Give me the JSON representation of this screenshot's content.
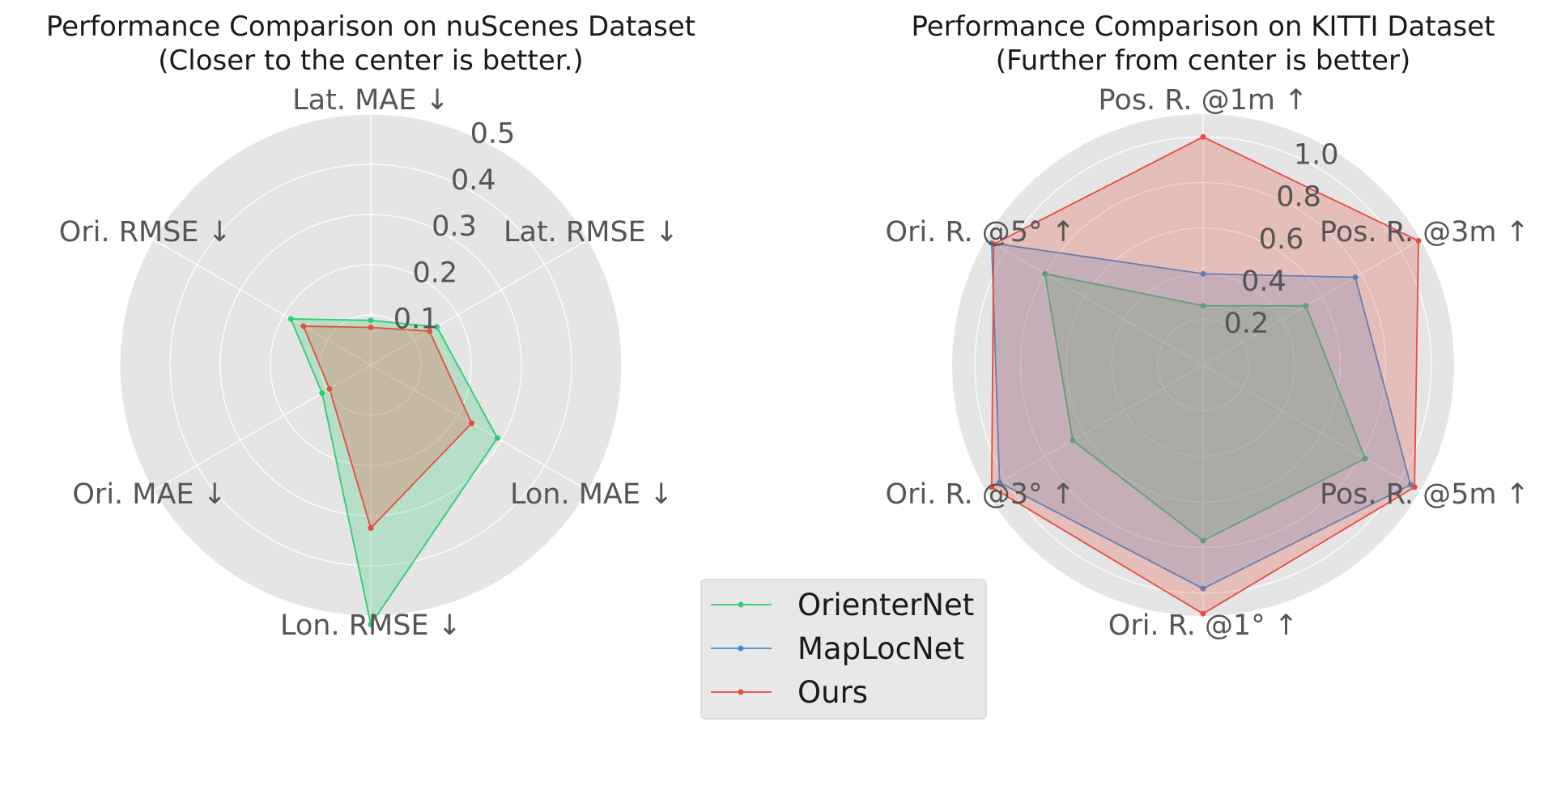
{
  "chart_data": [
    {
      "type": "radar",
      "title": "Performance Comparison on nuScenes Dataset",
      "subtitle": "(Closer to the center is better.)",
      "axes": [
        "Lat. MAE ↓",
        "Lat. RMSE ↓",
        "Lon. MAE ↓",
        "Lon. RMSE ↓",
        "Ori. MAE ↓",
        "Ori. RMSE ↓"
      ],
      "rlim": [
        0,
        0.5
      ],
      "ticks": [
        "0.1",
        "0.2",
        "0.3",
        "0.4",
        "0.5"
      ],
      "series": [
        {
          "name": "OrienterNet",
          "values": [
            0.089,
            0.152,
            0.291,
            0.517,
            0.112,
            0.184
          ]
        },
        {
          "name": "Ours",
          "values": [
            0.075,
            0.135,
            0.232,
            0.325,
            0.095,
            0.155
          ]
        }
      ],
      "grid": true
    },
    {
      "type": "radar",
      "title": "Performance Comparison on KITTI Dataset",
      "subtitle": "(Further from center is better)",
      "axes": [
        "Pos. R. @1m ↑",
        "Pos. R. @3m ↑",
        "Pos. R. @5m ↑",
        "Ori. R. @1° ↑",
        "Ori. R. @3° ↑",
        "Ori. R. @5° ↑"
      ],
      "rlim": [
        0,
        1.1
      ],
      "ticks": [
        "0.2",
        "0.4",
        "0.6",
        "0.8",
        "1.0"
      ],
      "series": [
        {
          "name": "OrienterNet",
          "values": [
            0.26,
            0.52,
            0.82,
            0.77,
            0.66,
            0.8
          ]
        },
        {
          "name": "MapLocNet",
          "values": [
            0.4,
            0.77,
            1.05,
            0.98,
            1.03,
            1.07
          ]
        },
        {
          "name": "Ours",
          "values": [
            1.0,
            1.09,
            1.07,
            1.09,
            1.07,
            1.06
          ]
        }
      ],
      "grid": true
    }
  ],
  "legend": {
    "placement": "bottom-center",
    "entries": [
      "OrienterNet",
      "MapLocNet",
      "Ours"
    ]
  },
  "colors": {
    "OrienterNet": "#2ecc71",
    "MapLocNet": "#3a8fd8",
    "Ours": "#e74c3c",
    "panel_bg": "#e5e5e5",
    "grid": "#ffffff"
  }
}
